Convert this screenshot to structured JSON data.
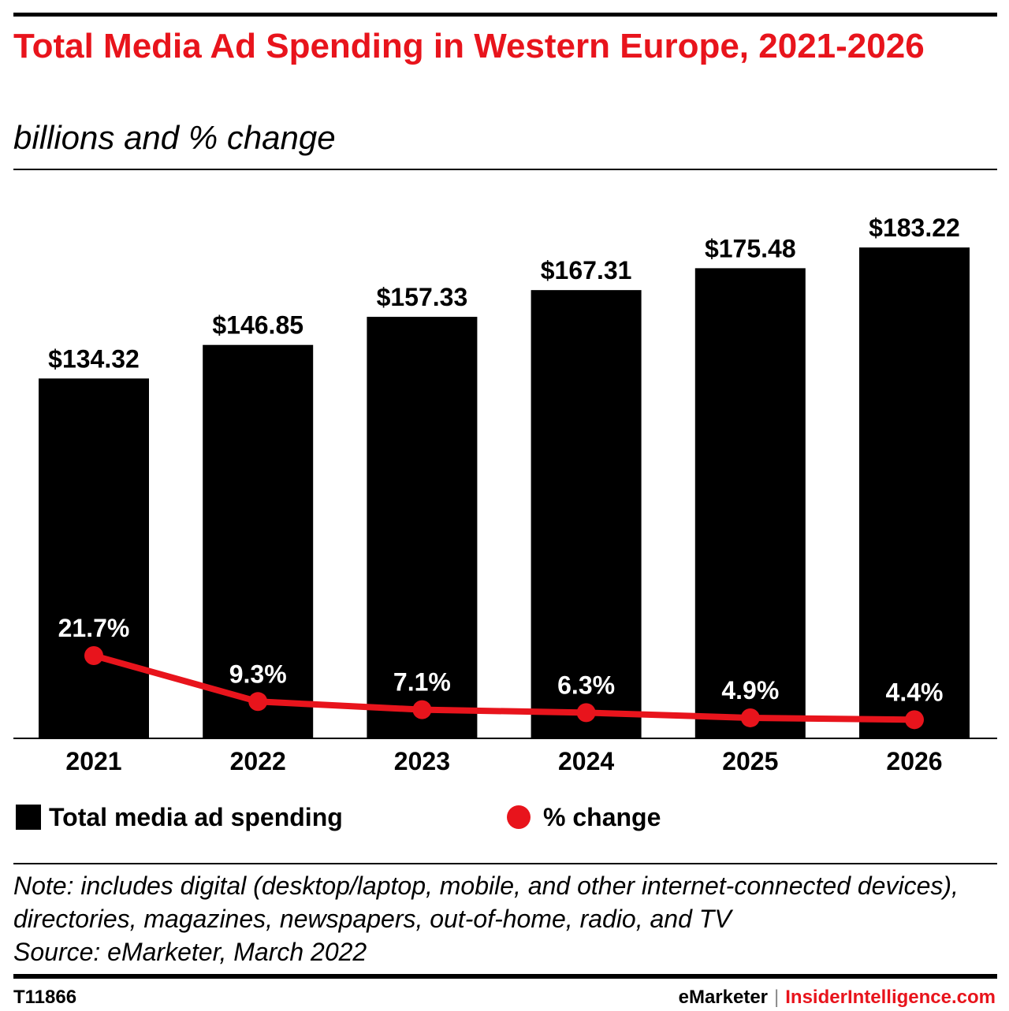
{
  "header": {
    "title": "Total Media Ad Spending in Western Europe, 2021-2026",
    "subtitle": "billions and % change"
  },
  "colors": {
    "accent": "#e8141c",
    "bar": "#000000"
  },
  "chart_data": {
    "type": "bar",
    "categories": [
      "2021",
      "2022",
      "2023",
      "2024",
      "2025",
      "2026"
    ],
    "series": [
      {
        "name": "Total media ad spending",
        "type": "bar",
        "values": [
          134.32,
          146.85,
          157.33,
          167.31,
          175.48,
          183.22
        ],
        "labels": [
          "$134.32",
          "$146.85",
          "$157.33",
          "$167.31",
          "$175.48",
          "$183.22"
        ]
      },
      {
        "name": "% change",
        "type": "line",
        "values": [
          21.7,
          9.3,
          7.1,
          6.3,
          4.9,
          4.4
        ],
        "labels": [
          "21.7%",
          "9.3%",
          "7.1%",
          "6.3%",
          "4.9%",
          "4.4%"
        ]
      }
    ],
    "legend_position": "bottom",
    "grid": false
  },
  "legend": {
    "bar_label": "Total media ad spending",
    "line_label": "% change"
  },
  "note": "Note: includes digital (desktop/laptop, mobile, and other internet-connected devices), directories, magazines, newspapers, out-of-home, radio, and TV",
  "source": "Source: eMarketer, March 2022",
  "footer": {
    "chart_id": "T11866",
    "brand_left": "eMarketer",
    "separator": "|",
    "brand_right": "InsiderIntelligence.com"
  }
}
